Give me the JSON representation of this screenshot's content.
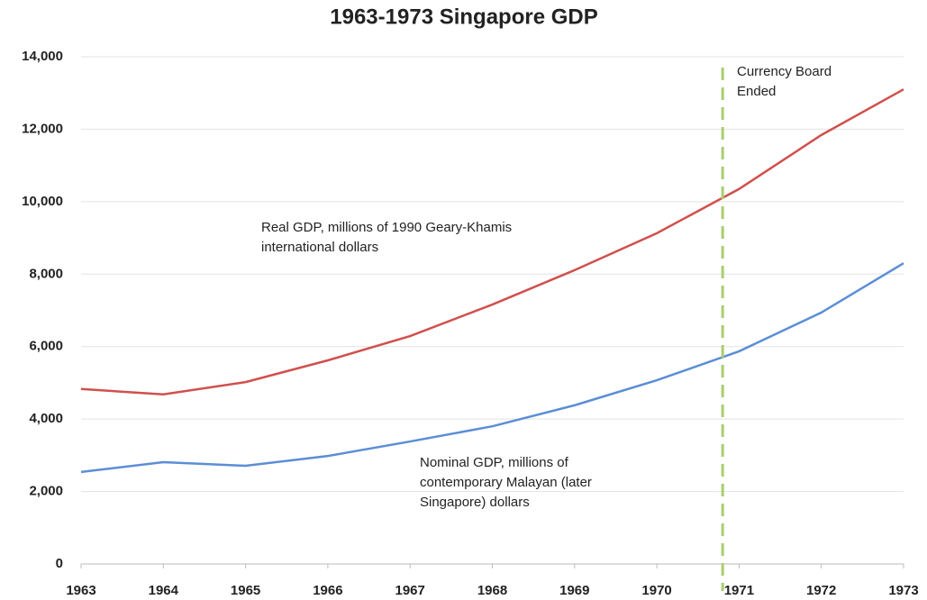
{
  "chart_data": {
    "type": "line",
    "title": "1963-1973 Singapore  GDP",
    "x": [
      1963,
      1964,
      1965,
      1966,
      1967,
      1968,
      1969,
      1970,
      1971,
      1972,
      1973
    ],
    "xlim": [
      1963,
      1973
    ],
    "xticks": [
      1963,
      1964,
      1965,
      1966,
      1967,
      1968,
      1969,
      1970,
      1971,
      1972,
      1973
    ],
    "ylim": [
      0,
      14000
    ],
    "yticks": [
      0,
      {
        "value": 2000,
        "label": "2,000"
      },
      {
        "value": 4000,
        "label": "4,000"
      },
      {
        "value": 6000,
        "label": "6,000"
      },
      {
        "value": 8000,
        "label": "8,000"
      },
      {
        "value": 10000,
        "label": "10,000"
      },
      {
        "value": 12000,
        "label": "12,000"
      },
      {
        "value": 14000,
        "label": "14,000"
      }
    ],
    "grid": true,
    "series": [
      {
        "name": "Real GDP, millions of 1990 Geary-Khamis international dollars",
        "color": "#d0504d",
        "values": [
          4830,
          4680,
          5020,
          5620,
          6290,
          7160,
          8110,
          9130,
          10350,
          11840,
          13100
        ]
      },
      {
        "name": "Nominal GDP, millions of contemporary Malayan (later Singapore) dollars",
        "color": "#5b8ed6",
        "values": [
          2540,
          2810,
          2710,
          2980,
          3380,
          3800,
          4380,
          5070,
          5870,
          6940,
          8300
        ]
      }
    ],
    "annotation": {
      "text": "Currency Board Ended",
      "x": 1970.8,
      "color": "#a9cd6e"
    }
  }
}
